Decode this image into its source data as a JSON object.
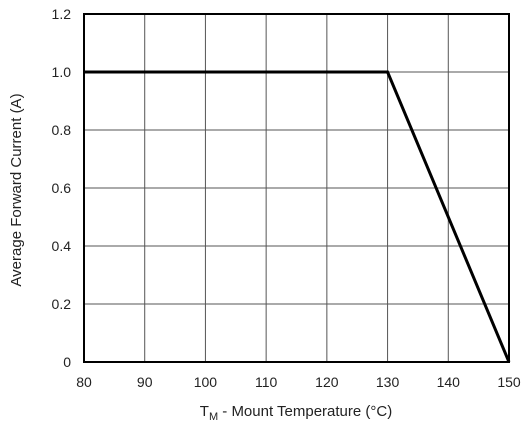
{
  "chart_data": {
    "type": "line",
    "title": "",
    "xlabel": {
      "symbol": "T",
      "subscript": "M",
      "text": " - Mount Temperature (°C)"
    },
    "ylabel": "Average Forward Current (A)",
    "xlim": [
      80,
      150
    ],
    "ylim": [
      0,
      1.2
    ],
    "x_ticks": [
      80,
      90,
      100,
      110,
      120,
      130,
      140,
      150
    ],
    "y_ticks": [
      0,
      0.2,
      0.4,
      0.6,
      0.8,
      1.0,
      1.2
    ],
    "x_tick_labels": [
      "80",
      "90",
      "100",
      "110",
      "120",
      "130",
      "140",
      "150"
    ],
    "y_tick_labels": [
      "0",
      "0.2",
      "0.4",
      "0.6",
      "0.8",
      "1.0",
      "1.2"
    ],
    "grid": true,
    "series": [
      {
        "points": [
          [
            80,
            1.0
          ],
          [
            130,
            1.0
          ],
          [
            150,
            0
          ]
        ]
      }
    ]
  }
}
